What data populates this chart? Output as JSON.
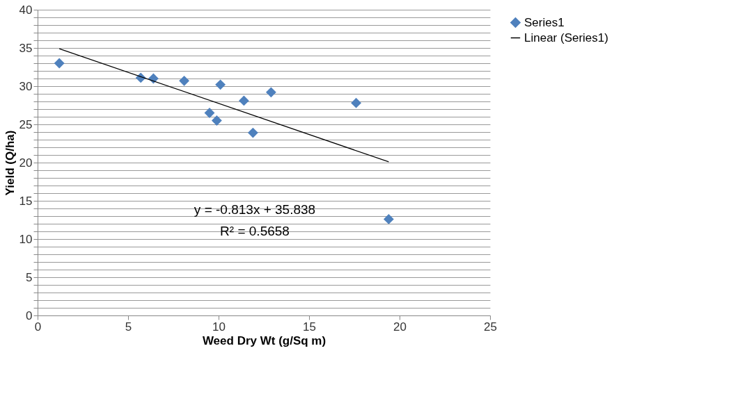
{
  "chart_data": {
    "type": "scatter",
    "xlabel": "Weed Dry Wt (g/Sq m)",
    "ylabel": "Yield (Q/ha)",
    "xlim": [
      0,
      25
    ],
    "xticks": [
      0,
      5,
      10,
      15,
      20,
      25
    ],
    "ylim": [
      0,
      40
    ],
    "yticks": [
      0,
      {
        "value": 1,
        "label": null
      },
      {
        "value": 2,
        "label": null
      },
      {
        "value": 3,
        "label": null
      },
      {
        "value": 4,
        "label": null
      },
      5,
      {
        "value": 6,
        "label": null
      },
      {
        "value": 7,
        "label": null
      },
      {
        "value": 8,
        "label": null
      },
      {
        "value": 9,
        "label": null
      },
      10,
      {
        "value": 11,
        "label": null
      },
      {
        "value": 12,
        "label": null
      },
      {
        "value": 13,
        "label": null
      },
      {
        "value": 14,
        "label": null
      },
      15,
      {
        "value": 16,
        "label": null
      },
      {
        "value": 17,
        "label": null
      },
      {
        "value": 18,
        "label": null
      },
      {
        "value": 19,
        "label": null
      },
      20,
      {
        "value": 21,
        "label": null
      },
      {
        "value": 22,
        "label": null
      },
      {
        "value": 23,
        "label": null
      },
      {
        "value": 24,
        "label": null
      },
      25,
      {
        "value": 26,
        "label": null
      },
      {
        "value": 27,
        "label": null
      },
      {
        "value": 28,
        "label": null
      },
      {
        "value": 29,
        "label": null
      },
      30,
      {
        "value": 31,
        "label": null
      },
      {
        "value": 32,
        "label": null
      },
      {
        "value": 33,
        "label": null
      },
      {
        "value": 34,
        "label": null
      },
      35,
      {
        "value": 36,
        "label": null
      },
      {
        "value": 37,
        "label": null
      },
      {
        "value": 38,
        "label": null
      },
      {
        "value": 39,
        "label": null
      },
      40
    ],
    "grid": "y",
    "legend": "right",
    "marker": "diamond",
    "series": [
      {
        "name": "Series1",
        "color": "#4f81bd",
        "x": [
          1.2,
          5.7,
          6.4,
          8.1,
          10.1,
          11.4,
          12.9,
          9.5,
          9.9,
          11.9,
          17.6,
          19.4
        ],
        "values": [
          33.0,
          31.1,
          31.0,
          30.7,
          30.2,
          28.1,
          29.2,
          26.5,
          25.5,
          23.9,
          27.8,
          12.6
        ]
      },
      {
        "name": "Linear (Series1)",
        "color": "#000000",
        "type": "line",
        "marker": "none",
        "x": [
          1.2,
          19.4
        ],
        "values": [
          34.9,
          20.1
        ]
      }
    ],
    "annotations": [
      "y = -0.813x + 35.838",
      "R² = 0.5658"
    ]
  }
}
